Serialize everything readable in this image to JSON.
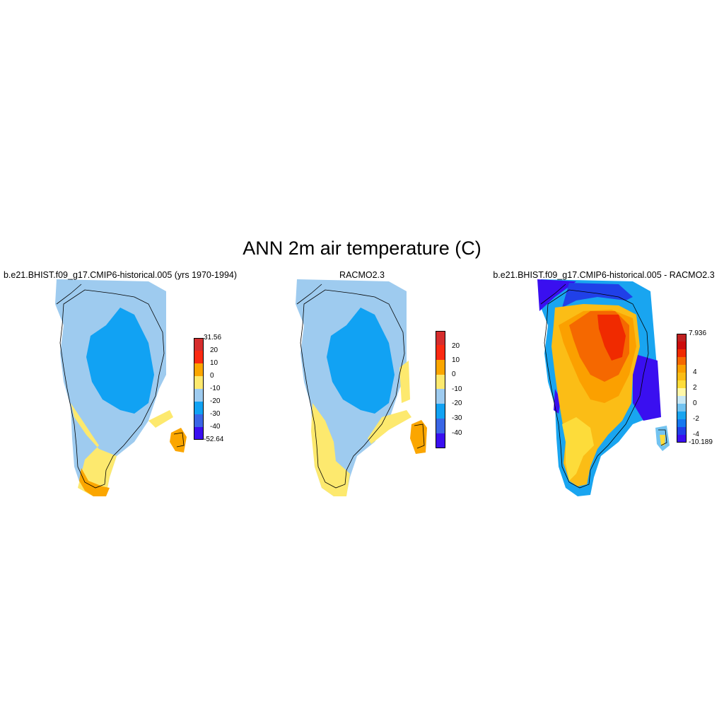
{
  "title": "ANN 2m air temperature (C)",
  "panels": [
    {
      "title": "b.e21.BHIST.f09_g17.CMIP6-historical.005 (yrs 1970-1994)",
      "colorbar": {
        "colors": [
          "#3a0ff0",
          "#3a66e6",
          "#11a2f3",
          "#9ecbef",
          "#fde96e",
          "#fba600",
          "#fb2a12",
          "#d62d2d"
        ],
        "labels": [
          "-52.64",
          "-40",
          "-30",
          "-20",
          "-10",
          "0",
          "10",
          "20",
          "31.56"
        ],
        "label_mode": "boundaries"
      }
    },
    {
      "title": "RACMO2.3",
      "colorbar": {
        "colors": [
          "#3a0ff0",
          "#3a66e6",
          "#11a2f3",
          "#9ecbef",
          "#fde96e",
          "#fba600",
          "#fb2a12",
          "#d62d2d"
        ],
        "labels": [
          "-40",
          "-30",
          "-20",
          "-10",
          "0",
          "10",
          "20"
        ],
        "label_mode": "interior"
      }
    },
    {
      "title": "b.e21.BHIST.f09_g17.CMIP6-historical.005 - RACMO2.3",
      "colorbar": {
        "colors": [
          "#3a0ff0",
          "#2040e8",
          "#1478f0",
          "#19a5f0",
          "#72c3f0",
          "#c8e8f4",
          "#fff8a8",
          "#fddc3a",
          "#fbbd16",
          "#fba000",
          "#f56800",
          "#f02a00",
          "#cc0c0c",
          "#c02020"
        ],
        "labels": [
          "-10.189",
          "",
          "-4",
          "",
          "-2",
          "",
          "0",
          "",
          "2",
          "",
          "4",
          "",
          "",
          "",
          "7.936"
        ],
        "label_mode": "boundaries"
      }
    }
  ]
}
